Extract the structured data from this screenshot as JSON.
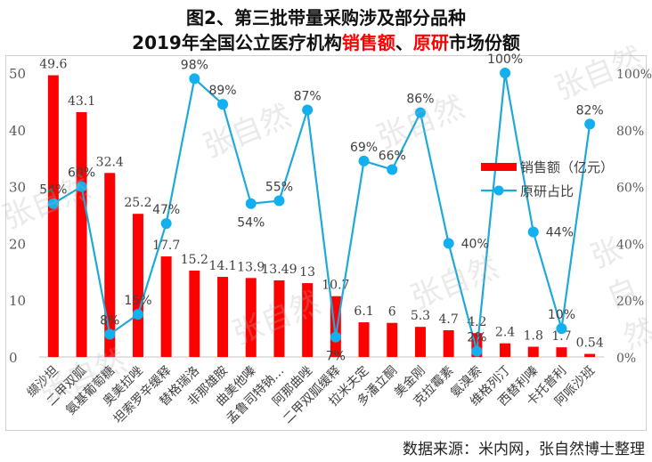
{
  "title": {
    "line1": "图2、第三批带量采购涉及部分品种",
    "line2_prefix": "2019年全国公立医疗机构",
    "line2_red1": "销售额",
    "line2_sep": "、",
    "line2_red2": "原研",
    "line2_suffix": "市场份额"
  },
  "watermark": "张自然",
  "source": "数据来源：米内网，张自然博士整理",
  "colors": {
    "bar": "#ff0000",
    "line": "#1fa9d9",
    "marker": "#12b0ee",
    "axis_text": "#595959",
    "grid": "#d9d9d9"
  },
  "chart_data": {
    "type": "bar+line",
    "title": "图2、第三批带量采购涉及部分品种 2019年全国公立医疗机构销售额、原研市场份额",
    "categories": [
      "缬沙坦",
      "二甲双胍",
      "氨基葡萄糖",
      "奥美拉唑",
      "坦索罗辛缓释",
      "替格瑞洛",
      "非那雄胺",
      "曲美他嗪",
      "孟鲁司特钠…",
      "阿那曲唑",
      "二甲双胍缓释",
      "拉米夫定",
      "多潘立酮",
      "美金刚",
      "克拉霉素",
      "氨溴索",
      "维格列汀",
      "西替利嗪",
      "卡托普利",
      "阿哌沙班"
    ],
    "series": [
      {
        "name": "销售额（亿元）",
        "type": "bar",
        "axis": "left",
        "values": [
          49.6,
          43.1,
          32.4,
          25.2,
          17.7,
          15.2,
          14.1,
          13.9,
          13.49,
          13,
          10.7,
          6.1,
          6,
          5.3,
          4.7,
          4.2,
          2.4,
          1.8,
          1.7,
          0.54
        ],
        "labels": [
          "49.6",
          "43.1",
          "32.4",
          "25.2",
          "17.7",
          "15.2",
          "14.1",
          "13.9",
          "13.49",
          "13",
          "10.7",
          "6.1",
          "6",
          "5.3",
          "4.7",
          "4.2",
          "2.4",
          "1.8",
          "1.7",
          "0.54"
        ]
      },
      {
        "name": "原研占比",
        "type": "line",
        "axis": "right",
        "values": [
          54,
          60,
          8,
          15,
          47,
          98,
          89,
          54,
          55,
          87,
          7,
          69,
          66,
          86,
          40,
          2,
          100,
          44,
          10,
          82
        ],
        "labels": [
          "54%",
          "60%",
          "8%",
          "15%",
          "47%",
          "98%",
          "89%",
          "54%",
          "55%",
          "87%",
          "7%",
          "69%",
          "66%",
          "86%",
          "40%",
          "2%",
          "100%",
          "44%",
          "10%",
          "82%"
        ]
      }
    ],
    "left_axis": {
      "ylim": [
        0,
        50
      ],
      "ticks": [
        "0",
        "10",
        "20",
        "30",
        "40",
        "50"
      ]
    },
    "right_axis": {
      "ylim": [
        0,
        100
      ],
      "ticks": [
        "0%",
        "20%",
        "40%",
        "60%",
        "80%",
        "100%"
      ]
    },
    "legend": {
      "position": "right-middle",
      "items": [
        "销售额（亿元）",
        "原研占比"
      ]
    },
    "grid": false,
    "xlabel": "",
    "ylabel": ""
  }
}
